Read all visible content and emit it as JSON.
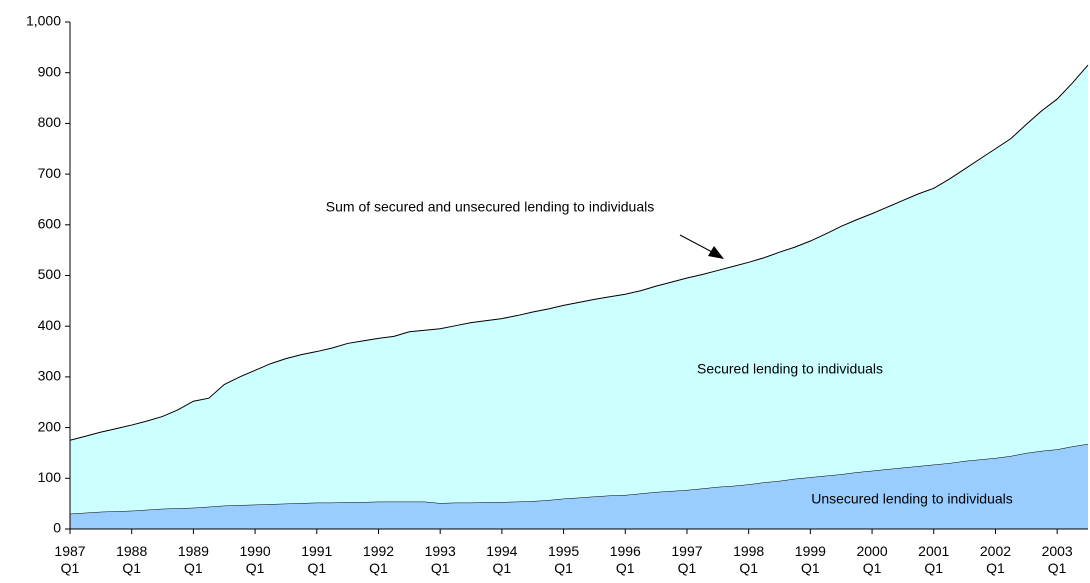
{
  "chart_data": {
    "type": "stacked_area",
    "categories": [
      "1987 Q1",
      null,
      null,
      null,
      "1988 Q1",
      null,
      null,
      null,
      "1989 Q1",
      null,
      null,
      null,
      "1990 Q1",
      null,
      null,
      null,
      "1991 Q1",
      null,
      null,
      null,
      "1992 Q1",
      null,
      null,
      null,
      "1993 Q1",
      null,
      null,
      null,
      "1994 Q1",
      null,
      null,
      null,
      "1995 Q1",
      null,
      null,
      null,
      "1996 Q1",
      null,
      null,
      null,
      "1997 Q1",
      null,
      null,
      null,
      "1998 Q1",
      null,
      null,
      null,
      "1999 Q1",
      null,
      null,
      null,
      "2000 Q1",
      null,
      null,
      null,
      "2001 Q1",
      null,
      null,
      null,
      "2002 Q1",
      null,
      null,
      null,
      "2003 Q1",
      null,
      null
    ],
    "series": [
      {
        "name": "Unsecured lending to individuals",
        "color": "#99ccff",
        "values": [
          30,
          32,
          34,
          35,
          36,
          38,
          40,
          41,
          42,
          44,
          46,
          47,
          48,
          49,
          50,
          51,
          52,
          52,
          53,
          53,
          54,
          54,
          54,
          54,
          51,
          52,
          52,
          53,
          53,
          54,
          55,
          57,
          60,
          62,
          64,
          66,
          67,
          70,
          73,
          75,
          77,
          80,
          83,
          85,
          88,
          92,
          95,
          99,
          102,
          105,
          108,
          112,
          115,
          118,
          121,
          124,
          127,
          130,
          134,
          137,
          140,
          144,
          150,
          154,
          157,
          163,
          168
        ]
      },
      {
        "name": "Secured lending to individuals",
        "color": "#ccffff",
        "values": [
          145,
          151,
          157,
          163,
          169,
          175,
          182,
          194,
          210,
          214,
          239,
          253,
          265,
          277,
          286,
          293,
          298,
          305,
          313,
          318,
          322,
          326,
          335,
          338,
          344,
          349,
          355,
          358,
          362,
          367,
          373,
          377,
          381,
          385,
          389,
          392,
          396,
          400,
          406,
          412,
          418,
          422,
          427,
          433,
          438,
          443,
          451,
          457,
          466,
          477,
          489,
          498,
          507,
          517,
          527,
          537,
          545,
          560,
          576,
          593,
          610,
          626,
          648,
          671,
          691,
          717,
          747
        ]
      }
    ],
    "annotation": "Sum of secured and unsecured lending to individuals",
    "ylim": [
      0,
      1000
    ],
    "yticks": [
      0,
      100,
      200,
      300,
      400,
      500,
      600,
      700,
      800,
      900,
      {
        "value": 1000,
        "label": "1,000"
      }
    ]
  }
}
